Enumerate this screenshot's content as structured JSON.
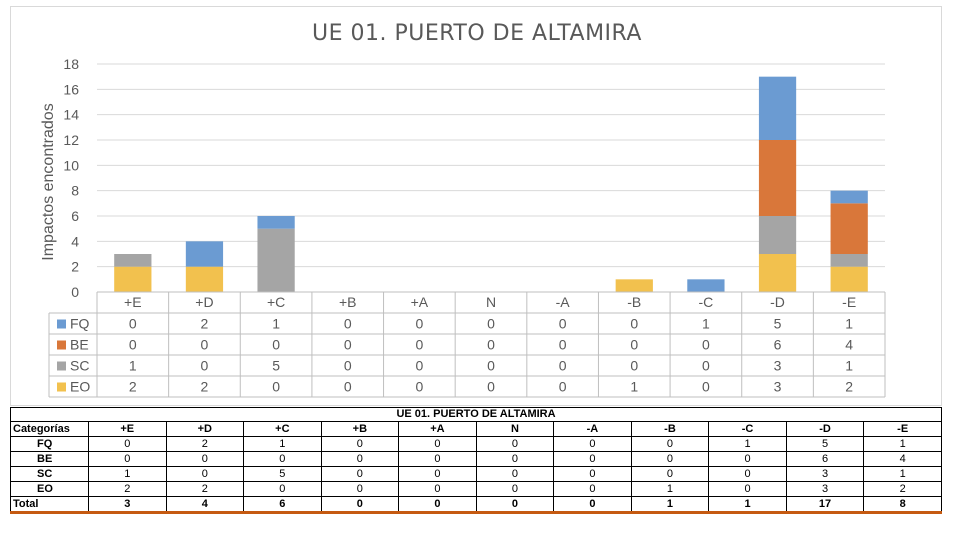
{
  "chart_data": {
    "type": "bar",
    "stacked": true,
    "title": "UE 01. PUERTO DE ALTAMIRA",
    "ylabel": "Impactos encontrados",
    "xlabel": "",
    "ylim": [
      0,
      18
    ],
    "yticks": [
      0,
      2,
      4,
      6,
      8,
      10,
      12,
      14,
      16,
      18
    ],
    "grid": true,
    "legend": "data-table-left",
    "categories": [
      "+E",
      "+D",
      "+C",
      "+B",
      "+A",
      "N",
      "-A",
      "-B",
      "-C",
      "-D",
      "-E"
    ],
    "series": [
      {
        "name": "EO",
        "color": "#f2c14e",
        "values": [
          2,
          2,
          0,
          0,
          0,
          0,
          0,
          1,
          0,
          3,
          2
        ]
      },
      {
        "name": "SC",
        "color": "#a5a5a5",
        "values": [
          1,
          0,
          5,
          0,
          0,
          0,
          0,
          0,
          0,
          3,
          1
        ]
      },
      {
        "name": "BE",
        "color": "#d9773a",
        "values": [
          0,
          0,
          0,
          0,
          0,
          0,
          0,
          0,
          0,
          6,
          4
        ]
      },
      {
        "name": "FQ",
        "color": "#6b9bd2",
        "values": [
          0,
          2,
          1,
          0,
          0,
          0,
          0,
          0,
          1,
          5,
          1
        ]
      }
    ],
    "table_row_order": [
      "FQ",
      "BE",
      "SC",
      "EO"
    ]
  },
  "summary_table": {
    "title": "UE 01. PUERTO DE ALTAMIRA",
    "header": [
      "Categorías",
      "+E",
      "+D",
      "+C",
      "+B",
      "+A",
      "N",
      "-A",
      "-B",
      "-C",
      "-D",
      "-E"
    ],
    "rows": [
      {
        "label": "FQ",
        "values": [
          "0",
          "2",
          "1",
          "0",
          "0",
          "0",
          "0",
          "0",
          "1",
          "5",
          "1"
        ]
      },
      {
        "label": "BE",
        "values": [
          "0",
          "0",
          "0",
          "0",
          "0",
          "0",
          "0",
          "0",
          "0",
          "6",
          "4"
        ]
      },
      {
        "label": "SC",
        "values": [
          "1",
          "0",
          "5",
          "0",
          "0",
          "0",
          "0",
          "0",
          "0",
          "3",
          "1"
        ]
      },
      {
        "label": "EO",
        "values": [
          "2",
          "2",
          "0",
          "0",
          "0",
          "0",
          "0",
          "1",
          "0",
          "3",
          "2"
        ]
      },
      {
        "label": "Total",
        "values": [
          "3",
          "4",
          "6",
          "0",
          "0",
          "0",
          "0",
          "1",
          "1",
          "17",
          "8"
        ]
      }
    ]
  }
}
